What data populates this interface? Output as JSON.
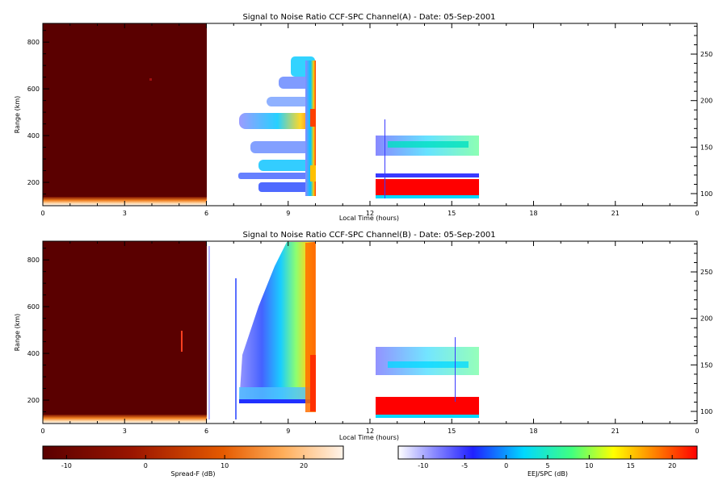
{
  "chart_data": [
    {
      "type": "heatmap",
      "title": "Signal to Noise Ratio CCF-SPC Channel(A) - Date: 05-Sep-2001",
      "xlabel": "Local Time (hours)",
      "ylabel": "Range (km)",
      "xlim": [
        0,
        24
      ],
      "ylim": [
        100,
        880
      ],
      "y2lim": [
        87,
        283
      ],
      "x_ticks": [
        "0",
        "3",
        "6",
        "9",
        "12",
        "15",
        "18",
        "21",
        "0"
      ],
      "y_ticks": [
        "200",
        "400",
        "600",
        "800"
      ],
      "y2_ticks": [
        "100",
        "150",
        "200",
        "250"
      ],
      "regions": [
        {
          "kind": "spread-f",
          "x": [
            0,
            6
          ],
          "y": [
            100,
            880
          ],
          "value_db": -13
        },
        {
          "kind": "spread-f",
          "x": [
            0,
            6
          ],
          "y": [
            100,
            125
          ],
          "value_db": 15
        },
        {
          "kind": "eej",
          "x": [
            7.2,
            10
          ],
          "y": [
            440,
            500
          ],
          "value_db": 0
        },
        {
          "kind": "eej",
          "x": [
            9.3,
            10
          ],
          "y": [
            120,
            740
          ],
          "value_db": 8
        },
        {
          "kind": "eej",
          "x": [
            12.4,
            16
          ],
          "y": [
            330,
            400
          ],
          "value_db": 2
        },
        {
          "kind": "eej",
          "x": [
            12.4,
            16
          ],
          "y": [
            120,
            200
          ],
          "value_db": 22
        }
      ]
    },
    {
      "type": "heatmap",
      "title": "Signal to Noise Ratio CCF-SPC Channel(B) - Date: 05-Sep-2001",
      "xlabel": "Local Time (hours)",
      "ylabel": "Range (km)",
      "xlim": [
        0,
        24
      ],
      "ylim": [
        100,
        880
      ],
      "y2lim": [
        87,
        283
      ],
      "x_ticks": [
        "0",
        "3",
        "6",
        "9",
        "12",
        "15",
        "18",
        "21",
        "0"
      ],
      "y_ticks": [
        "200",
        "400",
        "600",
        "800"
      ],
      "y2_ticks": [
        "100",
        "150",
        "200",
        "250"
      ],
      "regions": [
        {
          "kind": "spread-f",
          "x": [
            0,
            6
          ],
          "y": [
            100,
            880
          ],
          "value_db": -13
        },
        {
          "kind": "spread-f",
          "x": [
            0,
            6
          ],
          "y": [
            100,
            125
          ],
          "value_db": 15
        },
        {
          "kind": "eej",
          "x": [
            7.2,
            10
          ],
          "y": [
            180,
            880
          ],
          "value_db": 2
        },
        {
          "kind": "eej",
          "x": [
            9.7,
            10
          ],
          "y": [
            150,
            880
          ],
          "value_db": 18
        },
        {
          "kind": "eej",
          "x": [
            12.4,
            16
          ],
          "y": [
            330,
            400
          ],
          "value_db": 0
        },
        {
          "kind": "eej",
          "x": [
            12.4,
            16
          ],
          "y": [
            120,
            200
          ],
          "value_db": 22
        }
      ]
    }
  ],
  "colorbars": [
    {
      "label": "Spread-F (dB)",
      "range": [
        -13,
        25
      ],
      "ticks": [
        "-10",
        "0",
        "10",
        "20"
      ],
      "colors": [
        "#5a0000",
        "#9b1500",
        "#e55a00",
        "#ffae5a",
        "#fff2e6"
      ]
    },
    {
      "label": "EEJ/SPC (dB)",
      "range": [
        -13,
        23
      ],
      "ticks": [
        "-10",
        "-5",
        "0",
        "5",
        "10",
        "15",
        "20"
      ],
      "colors": [
        "#ffffff",
        "#3a3aff",
        "#00e0ff",
        "#40ff80",
        "#ffff00",
        "#ff8000",
        "#ff0000"
      ]
    }
  ]
}
